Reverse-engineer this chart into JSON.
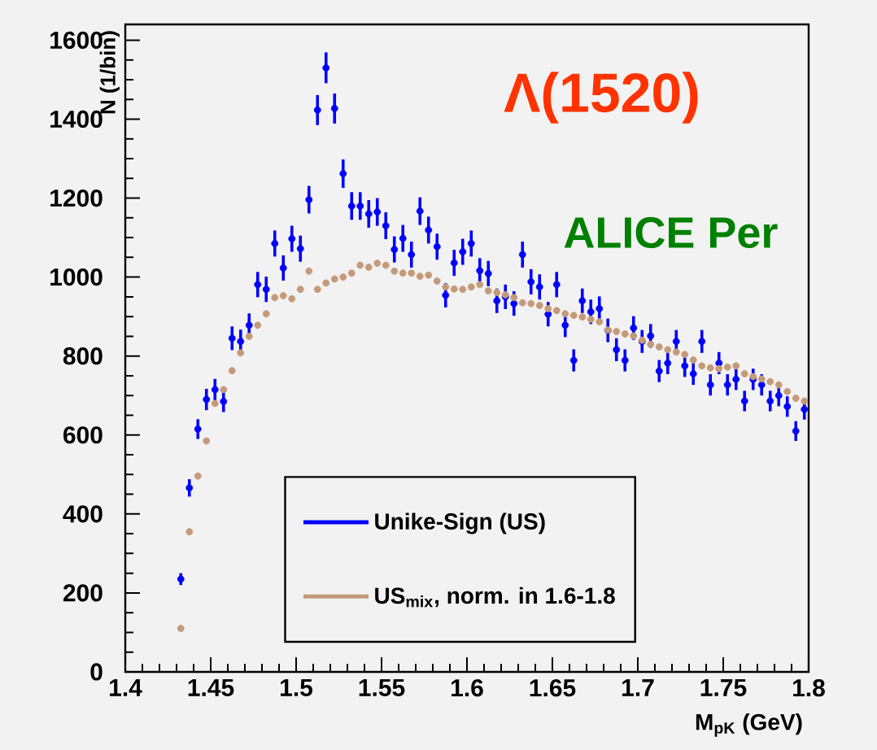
{
  "chart_data": {
    "type": "scatter",
    "xlabel": "M$_{pK}$ (GeV)",
    "ylabel": "N (1/bin)",
    "annotations": [
      "Λ(1520)",
      "ALICE Per"
    ],
    "xlim": [
      1.4,
      1.8
    ],
    "ylim": [
      0,
      1640
    ],
    "xticks": [
      1.4,
      1.45,
      1.5,
      1.55,
      1.6,
      1.65,
      1.7,
      1.75,
      1.8
    ],
    "yticks": [
      0,
      200,
      400,
      600,
      800,
      1000,
      1200,
      1400,
      1600
    ],
    "legend": "bottom",
    "grid": false,
    "x": [
      1.4325,
      1.4375,
      1.4425,
      1.4475,
      1.4525,
      1.4575,
      1.4625,
      1.4675,
      1.4725,
      1.4775,
      1.4825,
      1.4875,
      1.4925,
      1.4975,
      1.5025,
      1.5075,
      1.5125,
      1.5175,
      1.5225,
      1.5275,
      1.5325,
      1.5375,
      1.5425,
      1.5475,
      1.5525,
      1.5575,
      1.5625,
      1.5675,
      1.5725,
      1.5775,
      1.5825,
      1.5875,
      1.5925,
      1.5975,
      1.6025,
      1.6075,
      1.6125,
      1.6175,
      1.6225,
      1.6275,
      1.6325,
      1.6375,
      1.6425,
      1.6475,
      1.6525,
      1.6575,
      1.6625,
      1.6675,
      1.6725,
      1.6775,
      1.6825,
      1.6875,
      1.6925,
      1.6975,
      1.7025,
      1.7075,
      1.7125,
      1.7175,
      1.7225,
      1.7275,
      1.7325,
      1.7375,
      1.7425,
      1.7475,
      1.7525,
      1.7575,
      1.7625,
      1.7675,
      1.7725,
      1.7775,
      1.7825,
      1.7875,
      1.7925,
      1.7975
    ],
    "series": [
      {
        "name": "Unike-Sign (US)",
        "color": "#0000ff",
        "values": [
          235,
          466,
          615,
          690,
          715,
          685,
          845,
          837,
          878,
          981,
          969,
          1085,
          1023,
          1097,
          1072,
          1196,
          1423,
          1530,
          1427,
          1262,
          1180,
          1180,
          1160,
          1165,
          1130,
          1070,
          1098,
          1057,
          1167,
          1119,
          1077,
          954,
          1036,
          1064,
          1085,
          1016,
          1009,
          940,
          950,
          933,
          1057,
          988,
          975,
          906,
          981,
          878,
          789,
          940,
          912,
          920,
          865,
          816,
          789,
          871,
          837,
          851,
          762,
          782,
          837,
          775,
          755,
          837,
          727,
          782,
          727,
          741,
          686,
          741,
          727,
          686,
          700,
          672,
          610,
          665
        ],
        "errors": [
          15,
          22,
          25,
          27,
          27,
          27,
          30,
          30,
          30,
          32,
          32,
          33,
          32,
          33,
          33,
          35,
          38,
          39,
          38,
          36,
          35,
          35,
          35,
          35,
          34,
          33,
          34,
          33,
          35,
          34,
          33,
          31,
          33,
          33,
          33,
          32,
          32,
          31,
          31,
          31,
          33,
          32,
          32,
          31,
          32,
          30,
          28,
          31,
          31,
          31,
          30,
          29,
          28,
          30,
          29,
          30,
          28,
          28,
          29,
          28,
          28,
          29,
          27,
          28,
          27,
          27,
          26,
          27,
          27,
          26,
          27,
          26,
          25,
          26
        ],
        "xerrors": [
          0.0012,
          0.0012,
          0.0012,
          0.0012,
          0.0012,
          0.0012,
          0.0012,
          0.0012,
          0.0012,
          0.0012,
          0.0012,
          0.0012,
          0.0012,
          0.0012,
          0.0012,
          0.0012,
          0.0012,
          0.0012,
          0.0012,
          0.0012,
          0.0012,
          0.0012,
          0.0012,
          0.0012,
          0.0012,
          0.0012,
          0.0012,
          0.0012,
          0.0012,
          0.0012,
          0.0012,
          0.0012,
          0.0012,
          0.0012,
          0.0012,
          0.0012,
          0.0012,
          0.0012,
          0.0012,
          0.0012,
          0.0012,
          0.0012,
          0.0012,
          0.0012,
          0.0012,
          0.0012,
          0.0012,
          0.0012,
          0.0012,
          0.0012,
          0.0012,
          0.0012,
          0.0012,
          0.0012,
          0.0012,
          0.0012,
          0.0012,
          0.0012,
          0.0012,
          0.0012,
          0.0012,
          0.0012,
          0.0012,
          0.0012,
          0.0012,
          0.0012,
          0.0012,
          0.0012,
          0.0012,
          0.0012,
          0.0012,
          0.0012,
          0.0012,
          0.0012
        ]
      },
      {
        "name": "US$_{mix}$, norm. in 1.6-1.8",
        "color": "#c49a7a",
        "values": [
          110,
          355,
          496,
          585,
          680,
          715,
          763,
          808,
          850,
          878,
          907,
          948,
          953,
          945,
          969,
          1015,
          969,
          985,
          995,
          1000,
          1010,
          1030,
          1025,
          1035,
          1030,
          1015,
          1010,
          1010,
          1002,
          1005,
          990,
          975,
          970,
          969,
          975,
          981,
          965,
          961,
          955,
          948,
          935,
          933,
          928,
          920,
          915,
          907,
          903,
          899,
          893,
          887,
          866,
          862,
          856,
          851,
          840,
          830,
          823,
          816,
          810,
          804,
          790,
          775,
          770,
          768,
          772,
          775,
          755,
          748,
          742,
          735,
          727,
          710,
          693,
          686
        ],
        "errors": [
          8,
          8,
          8,
          8,
          8,
          8,
          8,
          8,
          8,
          8,
          8,
          8,
          8,
          8,
          8,
          8,
          8,
          8,
          8,
          8,
          8,
          8,
          8,
          8,
          8,
          8,
          8,
          8,
          8,
          8,
          8,
          8,
          8,
          8,
          8,
          8,
          8,
          8,
          8,
          8,
          8,
          8,
          8,
          8,
          8,
          8,
          8,
          8,
          8,
          8,
          8,
          8,
          8,
          8,
          8,
          8,
          8,
          8,
          8,
          8,
          8,
          8,
          8,
          8,
          8,
          8,
          8,
          8,
          8,
          8,
          8,
          8,
          8,
          8
        ],
        "xerrors": [
          0.0012,
          0.0012,
          0.0012,
          0.0012,
          0.0012,
          0.0012,
          0.0012,
          0.0012,
          0.0012,
          0.0012,
          0.0012,
          0.0012,
          0.0012,
          0.0012,
          0.0012,
          0.0012,
          0.0012,
          0.0012,
          0.0012,
          0.0012,
          0.0012,
          0.0012,
          0.0012,
          0.0012,
          0.0012,
          0.0012,
          0.0012,
          0.0012,
          0.0012,
          0.0012,
          0.0012,
          0.0012,
          0.0012,
          0.0012,
          0.0012,
          0.0012,
          0.0012,
          0.0012,
          0.0012,
          0.0012,
          0.0012,
          0.0012,
          0.0012,
          0.0012,
          0.0012,
          0.0012,
          0.0012,
          0.0012,
          0.0012,
          0.0012,
          0.0012,
          0.0012,
          0.0012,
          0.0012,
          0.0012,
          0.0012,
          0.0012,
          0.0012,
          0.0012,
          0.0012,
          0.0012,
          0.0012,
          0.0012,
          0.0012,
          0.0012,
          0.0012,
          0.0012,
          0.0012,
          0.0012,
          0.0012,
          0.0012,
          0.0012,
          0.0012,
          0.0012
        ]
      }
    ]
  }
}
